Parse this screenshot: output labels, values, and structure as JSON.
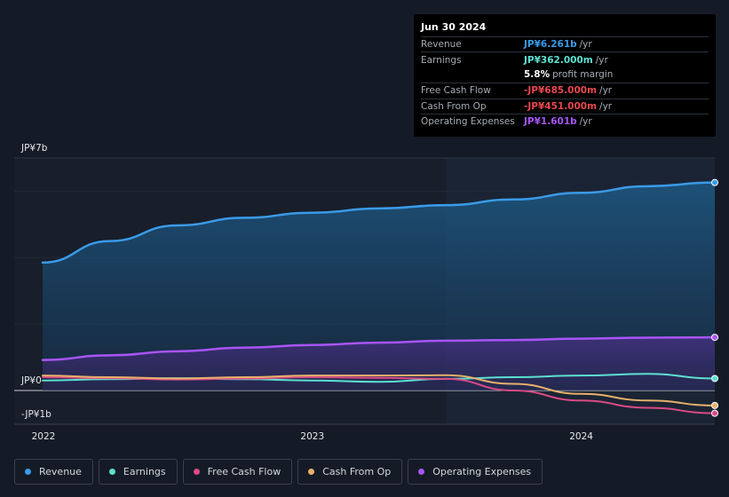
{
  "tooltip": {
    "date": "Jun 30 2024",
    "rows": [
      {
        "label": "Revenue",
        "value": "JP¥6.261b",
        "unit": "/yr",
        "color": "#3a9be8"
      },
      {
        "label": "Earnings",
        "value": "JP¥362.000m",
        "unit": "/yr",
        "color": "#5de0d0"
      },
      {
        "label": "",
        "value": "5.8%",
        "unit": "profit margin",
        "color": "#ffffff"
      },
      {
        "label": "Free Cash Flow",
        "value": "-JP¥685.000m",
        "unit": "/yr",
        "color": "#e8484d"
      },
      {
        "label": "Cash From Op",
        "value": "-JP¥451.000m",
        "unit": "/yr",
        "color": "#e8484d"
      },
      {
        "label": "Operating Expenses",
        "value": "JP¥1.601b",
        "unit": "/yr",
        "color": "#a855f7"
      }
    ]
  },
  "legend": [
    {
      "label": "Revenue",
      "color": "#3a9be8"
    },
    {
      "label": "Earnings",
      "color": "#5de0d0"
    },
    {
      "label": "Free Cash Flow",
      "color": "#d94a86"
    },
    {
      "label": "Cash From Op",
      "color": "#e8b06b"
    },
    {
      "label": "Operating Expenses",
      "color": "#a855f7"
    }
  ],
  "chart_data": {
    "type": "area",
    "y_tick_labels": [
      "JP¥7b",
      "JP¥0",
      "-JP¥1b"
    ],
    "x_tick_labels": [
      "2022",
      "2023",
      "2024"
    ],
    "ylim": [
      -1,
      7
    ],
    "xlim": [
      2022.0,
      2024.5
    ],
    "highlight_start": 2023.5,
    "grid": true,
    "legend_position": "bottom",
    "series": [
      {
        "name": "Revenue",
        "color": "#3a9be8",
        "fill": true,
        "x": [
          2022.0,
          2022.25,
          2022.5,
          2022.75,
          2023.0,
          2023.25,
          2023.5,
          2023.75,
          2024.0,
          2024.25,
          2024.5
        ],
        "y": [
          3.85,
          4.5,
          4.97,
          5.2,
          5.35,
          5.48,
          5.58,
          5.75,
          5.95,
          6.15,
          6.261
        ]
      },
      {
        "name": "Earnings",
        "color": "#5de0d0",
        "fill": false,
        "x": [
          2022.0,
          2022.25,
          2022.5,
          2022.75,
          2023.0,
          2023.25,
          2023.5,
          2023.75,
          2024.0,
          2024.25,
          2024.5
        ],
        "y": [
          0.3,
          0.34,
          0.37,
          0.34,
          0.3,
          0.26,
          0.35,
          0.4,
          0.45,
          0.5,
          0.362
        ]
      },
      {
        "name": "Free Cash Flow",
        "color": "#d94a86",
        "fill": false,
        "x": [
          2022.0,
          2022.25,
          2022.5,
          2022.75,
          2023.0,
          2023.25,
          2023.5,
          2023.75,
          2024.0,
          2024.25,
          2024.5
        ],
        "y": [
          0.4,
          0.37,
          0.33,
          0.36,
          0.4,
          0.38,
          0.35,
          0.0,
          -0.3,
          -0.52,
          -0.685
        ]
      },
      {
        "name": "Cash From Op",
        "color": "#e8b06b",
        "fill": false,
        "x": [
          2022.0,
          2022.25,
          2022.5,
          2022.75,
          2023.0,
          2023.25,
          2023.5,
          2023.75,
          2024.0,
          2024.25,
          2024.5
        ],
        "y": [
          0.45,
          0.4,
          0.36,
          0.4,
          0.45,
          0.45,
          0.46,
          0.2,
          -0.1,
          -0.3,
          -0.451
        ]
      },
      {
        "name": "Operating Expenses",
        "color": "#a855f7",
        "fill": true,
        "x": [
          2022.0,
          2022.25,
          2022.5,
          2022.75,
          2023.0,
          2023.25,
          2023.5,
          2023.75,
          2024.0,
          2024.25,
          2024.5
        ],
        "y": [
          0.92,
          1.06,
          1.18,
          1.29,
          1.37,
          1.44,
          1.5,
          1.52,
          1.56,
          1.59,
          1.601
        ]
      }
    ]
  }
}
